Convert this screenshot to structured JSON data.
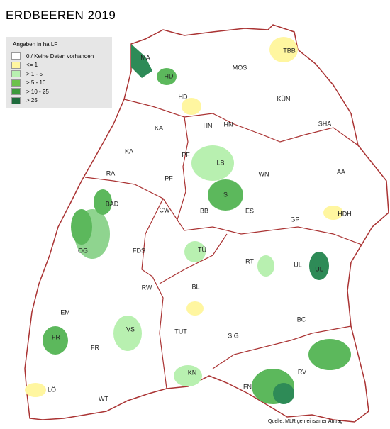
{
  "header": {
    "title": "ERDBEEREN  2019"
  },
  "legend": {
    "title": "Angaben in ha LF",
    "items": [
      {
        "label": "0 / Keine Daten vorhanden",
        "color": "#ffffff"
      },
      {
        "label": "<= 1",
        "color": "#fff6a0"
      },
      {
        "label": "> 1 - 5",
        "color": "#b8f0b0"
      },
      {
        "label": "> 5 - 10",
        "color": "#6cc24a"
      },
      {
        "label": "> 10 - 25",
        "color": "#3c9a3c"
      },
      {
        "label": "> 25",
        "color": "#1e6b3c"
      }
    ]
  },
  "map": {
    "labels": [
      "MA",
      "HD",
      "HD",
      "MOS",
      "TBB",
      "KÜN",
      "SHA",
      "HN",
      "HN",
      "KA",
      "KA",
      "PF",
      "PF",
      "LB",
      "WN",
      "AA",
      "RA",
      "S",
      "BAD",
      "CW",
      "BB",
      "ES",
      "GP",
      "HDH",
      "OG",
      "FDS",
      "TÜ",
      "RT",
      "UL",
      "UL",
      "RW",
      "BL",
      "EM",
      "BC",
      "FR",
      "FR",
      "VS",
      "TUT",
      "SIG",
      "KN",
      "RV",
      "FN",
      "LÖ",
      "WT"
    ]
  },
  "footer": {
    "source": "Quelle:  MLR gemeinsamer   Antrag"
  }
}
